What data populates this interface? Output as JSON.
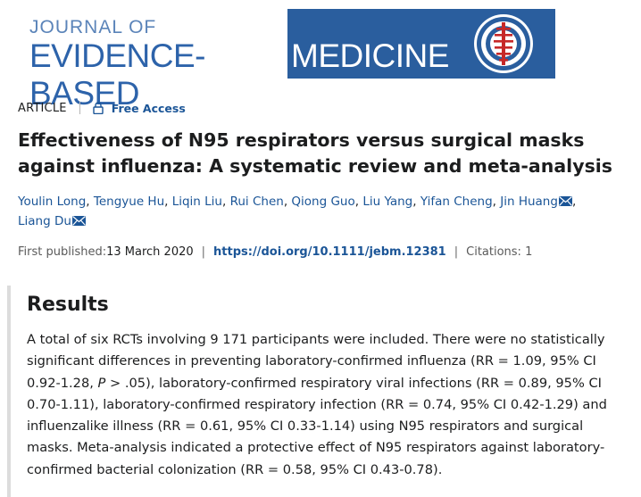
{
  "journal": {
    "line1": "JOURNAL OF",
    "line2": "EVIDENCE-BASED",
    "line3": "MEDICINE",
    "colors": {
      "light_blue": "#5b84b9",
      "brand_blue": "#2d63aa",
      "panel_blue": "#2a5e9e"
    }
  },
  "article": {
    "type": "ARTICLE",
    "access_icon": "lock-icon",
    "access_label": "Free Access",
    "title": "Effectiveness of N95 respirators versus surgical masks against influenza: A systematic review and meta-analysis"
  },
  "authors": [
    {
      "name": "Youlin Long",
      "mail": false
    },
    {
      "name": "Tengyue Hu",
      "mail": false
    },
    {
      "name": "Liqin Liu",
      "mail": false
    },
    {
      "name": "Rui Chen",
      "mail": false
    },
    {
      "name": "Qiong Guo",
      "mail": false
    },
    {
      "name": "Liu Yang",
      "mail": false
    },
    {
      "name": "Yifan Cheng",
      "mail": false
    },
    {
      "name": "Jin Huang",
      "mail": true
    },
    {
      "name": "Liang Du",
      "mail": true
    }
  ],
  "publication": {
    "first_published_label": "First published:",
    "first_published_date": "13 March 2020",
    "doi": "https://doi.org/10.1111/jebm.12381",
    "citations_label": "Citations: 1"
  },
  "results": {
    "heading": "Results",
    "text_before_p": "A total of six RCTs involving 9 171 participants were included. There were no statistically significant differences in preventing laboratory-confirmed influenza (RR = 1.09, 95% CI 0.92-1.28, ",
    "p_symbol": "P",
    "text_after_p": " > .05), laboratory-confirmed respiratory viral infections (RR = 0.89, 95% CI 0.70-1.11), laboratory-confirmed respiratory infection (RR = 0.74, 95% CI 0.42-1.29) and influenzalike illness (RR = 0.61, 95% CI 0.33-1.14) using N95 respirators and surgical masks. Meta-analysis indicated a protective effect of N95 respirators against laboratory-confirmed bacterial colonization (RR = 0.58, 95% CI 0.43-0.78)."
  },
  "icons": {
    "lock": "lock-icon",
    "mail": "mail-icon",
    "logo": "journal-logo-icon"
  }
}
